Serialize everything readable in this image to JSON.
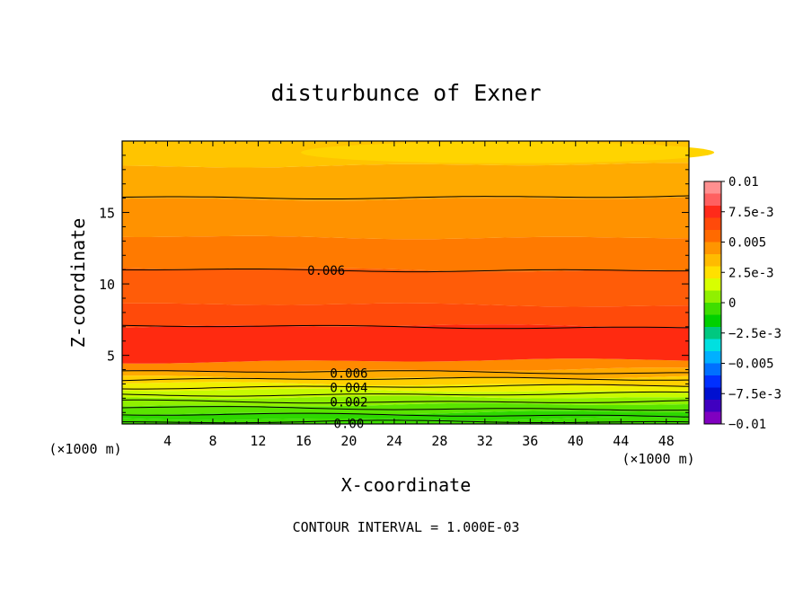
{
  "chart_data": {
    "type": "heatmap",
    "title": "disturbunce of Exner",
    "xlabel": "X-coordinate",
    "ylabel": "Z-coordinate",
    "x_units_left": "(×1000 m)",
    "x_units_right": "(×1000 m)",
    "xlim": [
      0,
      50
    ],
    "ylim": [
      0.2,
      20
    ],
    "xticks": [
      4,
      8,
      12,
      16,
      20,
      24,
      28,
      32,
      36,
      40,
      44,
      48
    ],
    "yticks": [
      5,
      10,
      15
    ],
    "footer": "CONTOUR INTERVAL = 1.000E-03",
    "colorbar": {
      "min": -0.01,
      "max": 0.01,
      "tick_labels": [
        "0.01",
        "7.5e-3",
        "0.005",
        "2.5e-3",
        "0",
        "−2.5e-3",
        "−0.005",
        "−7.5e-3",
        "−0.01"
      ],
      "tick_values": [
        0.01,
        0.0075,
        0.005,
        0.0025,
        0,
        -0.0025,
        -0.005,
        -0.0075,
        -0.01
      ],
      "colors": [
        "#ff9090",
        "#ff6060",
        "#ff2a1a",
        "#ff4a0a",
        "#ff6a00",
        "#ff9500",
        "#ffbb00",
        "#ffe000",
        "#d8ff00",
        "#90f000",
        "#3ede00",
        "#00d000",
        "#00c880",
        "#00e0e0",
        "#00b0ff",
        "#0070ff",
        "#0030ff",
        "#0010d0",
        "#4000c0",
        "#8000c0"
      ]
    },
    "bands": [
      {
        "z": [
          0.2,
          0.6
        ],
        "value": 0.0005,
        "color": "#3ede00"
      },
      {
        "z": [
          0.6,
          1.0
        ],
        "value": 0.0008,
        "color": "#2ed800"
      },
      {
        "z": [
          1.0,
          1.5
        ],
        "value": 0.0012,
        "color": "#5ae400"
      },
      {
        "z": [
          1.5,
          2.0
        ],
        "value": 0.0018,
        "color": "#90f000"
      },
      {
        "z": [
          2.0,
          2.5
        ],
        "value": 0.0023,
        "color": "#c8fa00"
      },
      {
        "z": [
          2.5,
          3.0
        ],
        "value": 0.0029,
        "color": "#f0f000"
      },
      {
        "z": [
          3.0,
          3.5
        ],
        "value": 0.0035,
        "color": "#ffd000"
      },
      {
        "z": [
          3.5,
          4.0
        ],
        "value": 0.0045,
        "color": "#ffaa00"
      },
      {
        "z": [
          4.0,
          4.6
        ],
        "value": 0.0055,
        "color": "#ff8a00"
      },
      {
        "z": [
          4.6,
          7.0
        ],
        "value": 0.0068,
        "color": "#ff2a10"
      },
      {
        "z": [
          7.0,
          8.5
        ],
        "value": 0.0063,
        "color": "#ff4a0a"
      },
      {
        "z": [
          8.5,
          11.0
        ],
        "value": 0.0061,
        "color": "#ff5c08"
      },
      {
        "z": [
          11.0,
          13.3
        ],
        "value": 0.0055,
        "color": "#ff7a00"
      },
      {
        "z": [
          13.3,
          16.0
        ],
        "value": 0.0052,
        "color": "#ff9200"
      },
      {
        "z": [
          16.0,
          18.3
        ],
        "value": 0.0048,
        "color": "#ffaa00"
      },
      {
        "z": [
          18.3,
          20.0
        ],
        "value": 0.0044,
        "color": "#ffc400"
      }
    ],
    "contours": [
      {
        "label": "0.00",
        "z": 0.3,
        "label_x": 20
      },
      {
        "label": "",
        "z": 0.8,
        "label_x": null
      },
      {
        "label": "",
        "z": 1.3,
        "label_x": null
      },
      {
        "label": "0.002",
        "z": 1.8,
        "label_x": 20
      },
      {
        "label": "",
        "z": 2.3,
        "label_x": null
      },
      {
        "label": "0.004",
        "z": 2.8,
        "label_x": 20
      },
      {
        "label": "",
        "z": 3.3,
        "label_x": null
      },
      {
        "label": "0.006",
        "z": 3.8,
        "label_x": 20
      },
      {
        "label": "",
        "z": 7.0,
        "label_x": null
      },
      {
        "label": "0.006",
        "z": 11.0,
        "label_x": 18
      },
      {
        "label": "",
        "z": 16.1,
        "label_x": null
      }
    ]
  }
}
